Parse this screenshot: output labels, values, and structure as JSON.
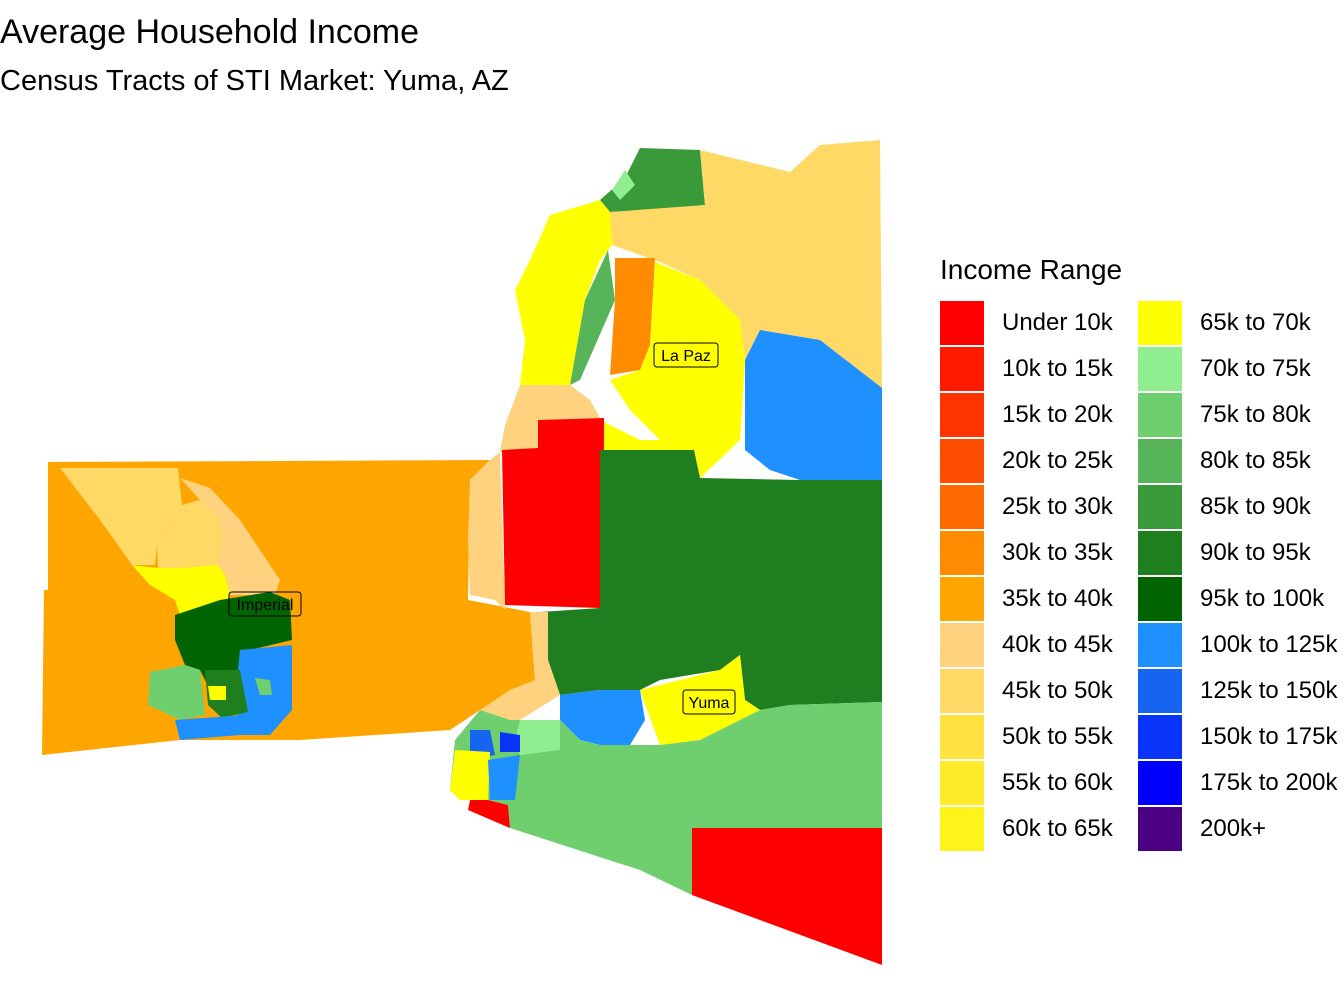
{
  "title": "Average Household Income",
  "subtitle": "Census Tracts of STI Market: Yuma, AZ",
  "legend": {
    "title": "Income Range",
    "items": [
      {
        "label": "Under 10k",
        "color": "#FF0000"
      },
      {
        "label": "10k to 15k",
        "color": "#FF1A00"
      },
      {
        "label": "15k to 20k",
        "color": "#FF3300"
      },
      {
        "label": "20k to 25k",
        "color": "#FF4D00"
      },
      {
        "label": "25k to 30k",
        "color": "#FF6A00"
      },
      {
        "label": "30k to 35k",
        "color": "#FF8C00"
      },
      {
        "label": "35k to 40k",
        "color": "#FFA500"
      },
      {
        "label": "40k to 45k",
        "color": "#FFD27F"
      },
      {
        "label": "45k to 50k",
        "color": "#FFD966"
      },
      {
        "label": "50k to 55k",
        "color": "#FFE23F"
      },
      {
        "label": "55k to 60k",
        "color": "#FFEB2A"
      },
      {
        "label": "60k to 65k",
        "color": "#FFF41A"
      },
      {
        "label": "65k to 70k",
        "color": "#FFFF00"
      },
      {
        "label": "70k to 75k",
        "color": "#90EE90"
      },
      {
        "label": "75k to 80k",
        "color": "#6FCF6F"
      },
      {
        "label": "80k to 85k",
        "color": "#58B458"
      },
      {
        "label": "85k to 90k",
        "color": "#3A9A3A"
      },
      {
        "label": "90k to 95k",
        "color": "#1F7F1F"
      },
      {
        "label": "95k to 100k",
        "color": "#006400"
      },
      {
        "label": "100k to 125k",
        "color": "#1E90FF"
      },
      {
        "label": "125k to 150k",
        "color": "#1665F0"
      },
      {
        "label": "150k to 175k",
        "color": "#0A33FA"
      },
      {
        "label": "175k to 200k",
        "color": "#0000FF"
      },
      {
        "label": "200k+",
        "color": "#4B0082"
      }
    ]
  },
  "counties": [
    {
      "name": "Imperial"
    },
    {
      "name": "La Paz"
    },
    {
      "name": "Yuma"
    }
  ]
}
